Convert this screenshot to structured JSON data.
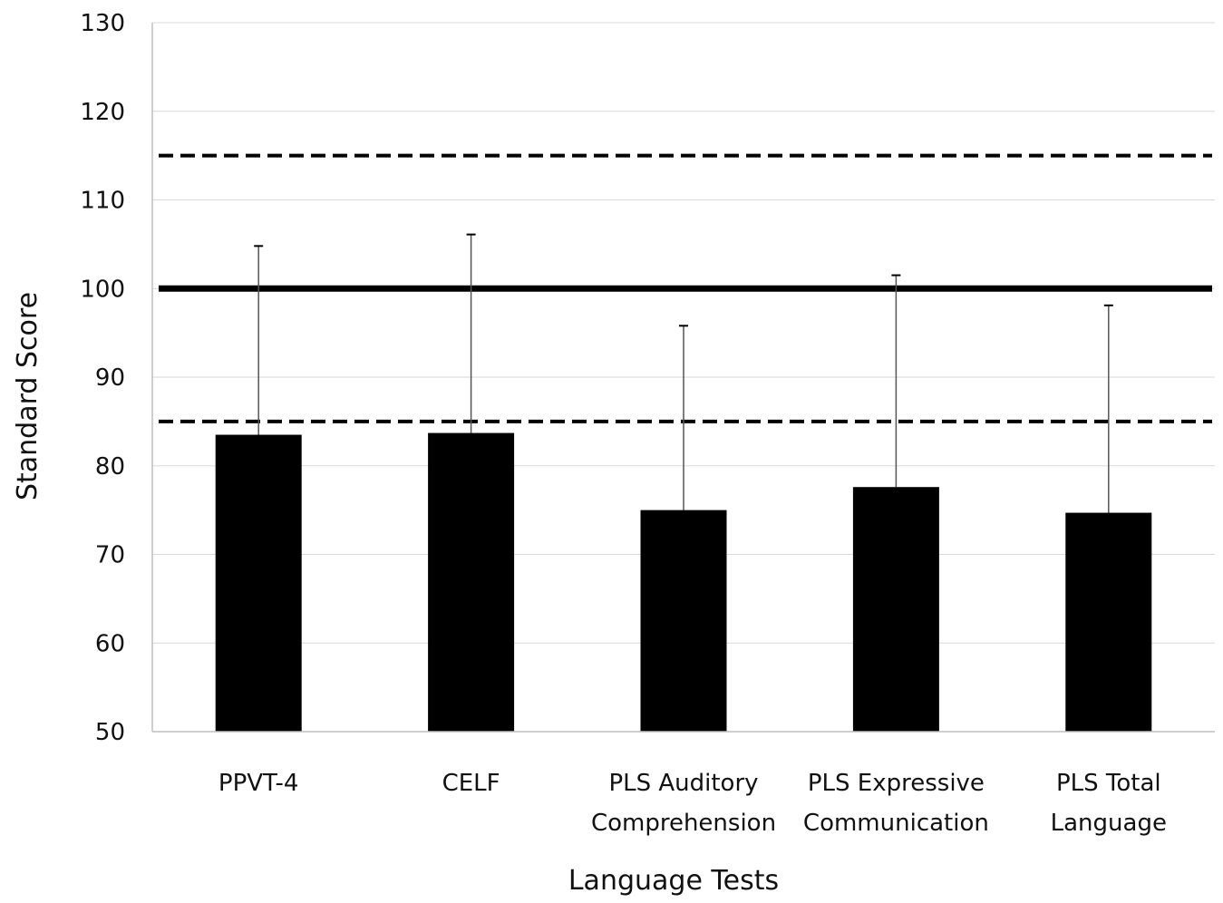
{
  "chart_data": {
    "type": "bar",
    "title": "",
    "xlabel": "Language Tests",
    "ylabel": "Standard  Score",
    "ylim": [
      50,
      130
    ],
    "yticks": [
      50,
      60,
      70,
      80,
      90,
      100,
      110,
      120,
      130
    ],
    "grid": true,
    "categories": [
      [
        "PPVT-4"
      ],
      [
        "CELF"
      ],
      [
        "PLS Auditory",
        "Comprehension"
      ],
      [
        "PLS Expressive",
        "Communication"
      ],
      [
        "PLS Total",
        "Language"
      ]
    ],
    "values": [
      83.5,
      83.7,
      75.0,
      77.6,
      74.7
    ],
    "error_upper": [
      104.8,
      106.1,
      95.8,
      101.5,
      98.1
    ],
    "reference_lines": [
      {
        "value": 115,
        "style": "dashed"
      },
      {
        "value": 100,
        "style": "solid"
      },
      {
        "value": 85,
        "style": "dashed"
      }
    ],
    "colors": {
      "bar": "#000000",
      "error_bar": "#555555",
      "grid": "#d9d9d9",
      "axis": "#bfbfbf",
      "reference": "#000000"
    }
  }
}
